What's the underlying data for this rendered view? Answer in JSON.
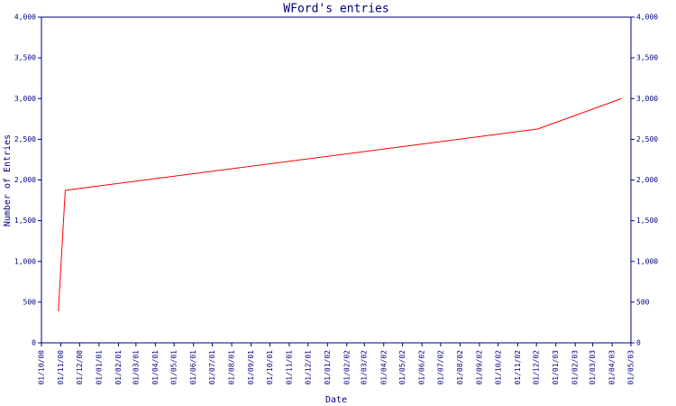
{
  "chart_data": {
    "type": "line",
    "title": "WFord's entries",
    "x_label": "Date",
    "y_label": "Number of Entries",
    "x": [
      "2000-10-28",
      "2000-11-08",
      "2002-12-03",
      "2003-04-16"
    ],
    "values": [
      388,
      1873,
      2626,
      3000
    ],
    "color": "#ff0000",
    "axis_color": "#000080",
    "xlim": [
      "2000-10-01",
      "2003-05-01"
    ],
    "xticks": [
      {
        "value": "2000-10-01",
        "label": "01/10/00"
      },
      {
        "value": "2000-11-01",
        "label": "01/11/00"
      },
      {
        "value": "2000-12-01",
        "label": "01/12/00"
      },
      {
        "value": "2001-01-01",
        "label": "01/01/01"
      },
      {
        "value": "2001-02-01",
        "label": "01/02/01"
      },
      {
        "value": "2001-03-01",
        "label": "01/03/01"
      },
      {
        "value": "2001-04-01",
        "label": "01/04/01"
      },
      {
        "value": "2001-05-01",
        "label": "01/05/01"
      },
      {
        "value": "2001-06-01",
        "label": "01/06/01"
      },
      {
        "value": "2001-07-01",
        "label": "01/07/01"
      },
      {
        "value": "2001-08-01",
        "label": "01/08/01"
      },
      {
        "value": "2001-09-01",
        "label": "01/09/01"
      },
      {
        "value": "2001-10-01",
        "label": "01/10/01"
      },
      {
        "value": "2001-11-01",
        "label": "01/11/01"
      },
      {
        "value": "2001-12-01",
        "label": "01/12/01"
      },
      {
        "value": "2002-01-01",
        "label": "01/01/02"
      },
      {
        "value": "2002-02-01",
        "label": "01/02/02"
      },
      {
        "value": "2002-03-01",
        "label": "01/03/02"
      },
      {
        "value": "2002-04-01",
        "label": "01/04/02"
      },
      {
        "value": "2002-05-01",
        "label": "01/05/02"
      },
      {
        "value": "2002-06-01",
        "label": "01/06/02"
      },
      {
        "value": "2002-07-01",
        "label": "01/07/02"
      },
      {
        "value": "2002-08-01",
        "label": "01/08/02"
      },
      {
        "value": "2002-09-01",
        "label": "01/09/02"
      },
      {
        "value": "2002-10-01",
        "label": "01/10/02"
      },
      {
        "value": "2002-11-01",
        "label": "01/11/02"
      },
      {
        "value": "2002-12-01",
        "label": "01/12/02"
      },
      {
        "value": "2003-01-01",
        "label": "01/01/03"
      },
      {
        "value": "2003-02-01",
        "label": "01/02/03"
      },
      {
        "value": "2003-03-01",
        "label": "01/03/03"
      },
      {
        "value": "2003-04-01",
        "label": "01/04/03"
      },
      {
        "value": "2003-05-01",
        "label": "01/05/03"
      }
    ],
    "ylim": [
      0,
      4000
    ],
    "yticks": [
      0,
      500,
      {
        "value": 1000,
        "label": "1,000"
      },
      {
        "value": 1500,
        "label": "1,500"
      },
      {
        "value": 2000,
        "label": "2,000"
      },
      {
        "value": 2500,
        "label": "2,500"
      },
      {
        "value": 3000,
        "label": "3,000"
      },
      {
        "value": 3500,
        "label": "3,500"
      },
      {
        "value": 4000,
        "label": "4,000"
      }
    ],
    "y2lim": [
      0,
      4000
    ],
    "y2ticks": [
      0,
      500,
      {
        "value": 1000,
        "label": "1,000"
      },
      {
        "value": 1500,
        "label": "1,500"
      },
      {
        "value": 2000,
        "label": "2,000"
      },
      {
        "value": 2500,
        "label": "2,500"
      },
      {
        "value": 3000,
        "label": "3,000"
      },
      {
        "value": 3500,
        "label": "3,500"
      },
      {
        "value": 4000,
        "label": "4,000"
      }
    ],
    "grid": false
  }
}
